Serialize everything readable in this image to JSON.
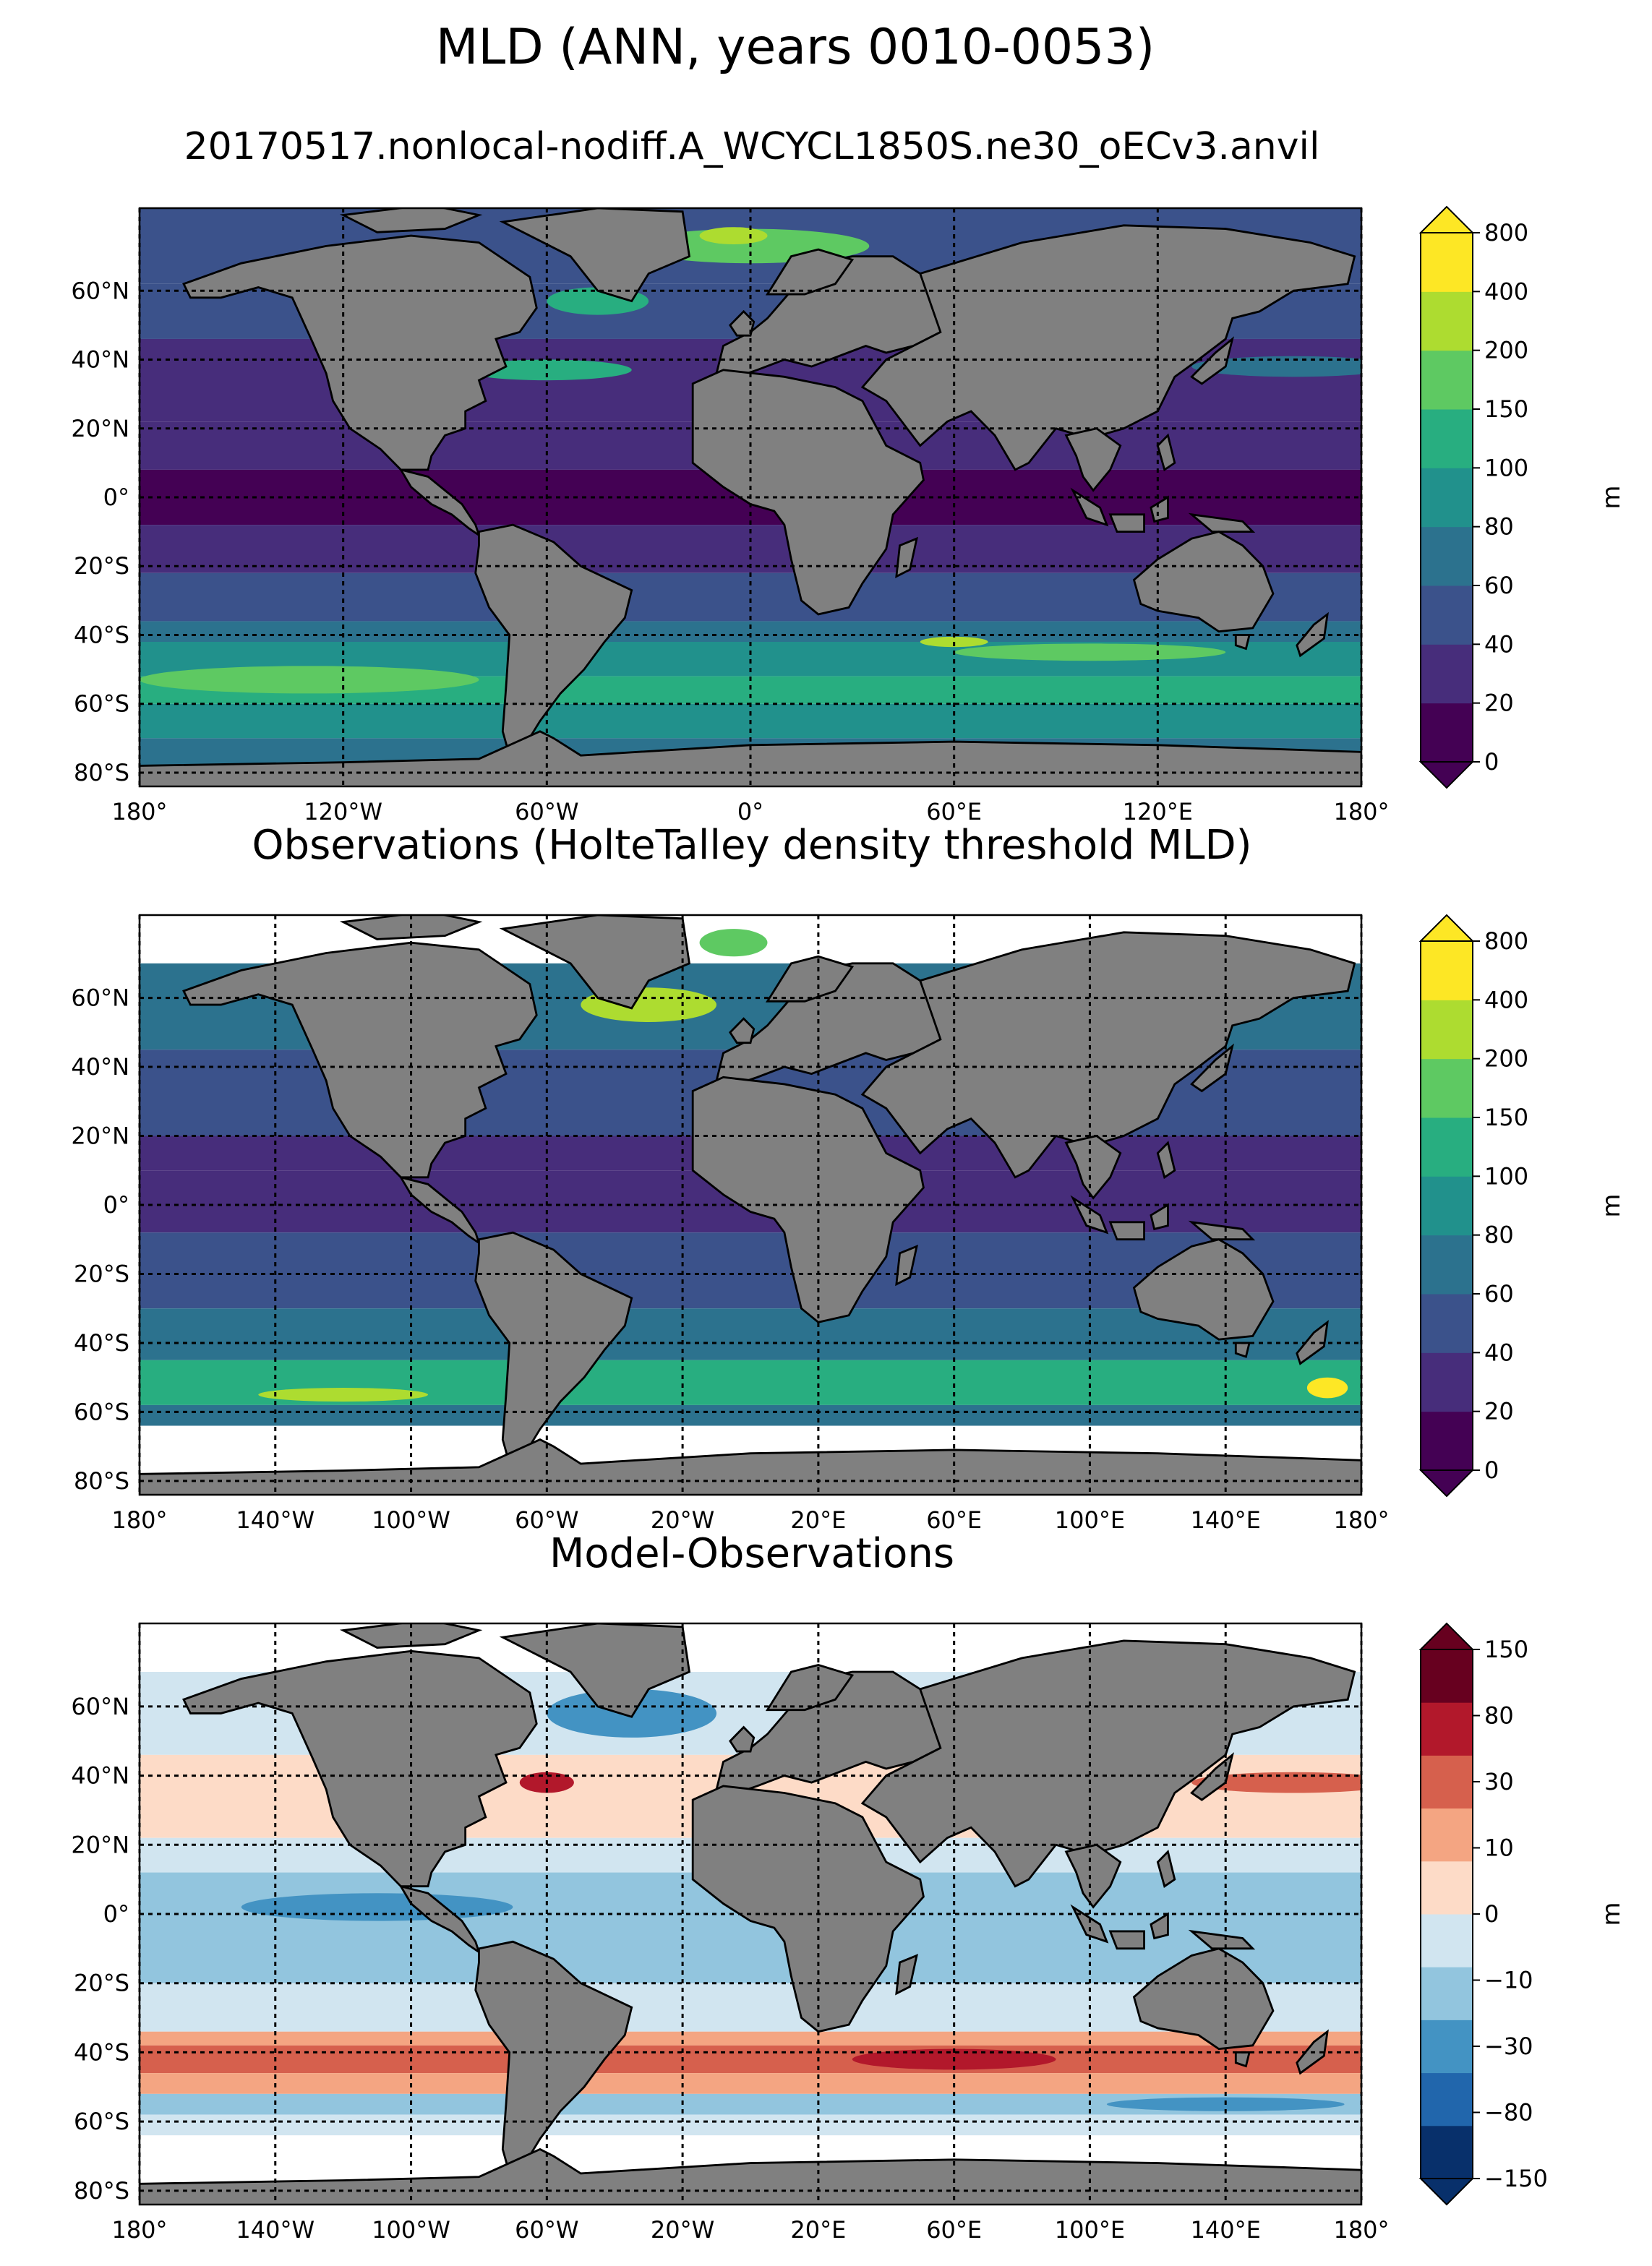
{
  "figure": {
    "title": "MLD (ANN, years 0010-0053)",
    "subtitle": "20170517.nonlocal-nodiff.A_WCYCL1850S.ne30_oECv3.anvil"
  },
  "colors": {
    "land": "#808080",
    "viridis": [
      "#440154",
      "#472d7b",
      "#3b528b",
      "#2c728e",
      "#21918c",
      "#28ae80",
      "#5ec962",
      "#addc30",
      "#fde725"
    ],
    "rdbu": [
      "#08306b",
      "#2166ac",
      "#4393c3",
      "#92c5de",
      "#d1e5f0",
      "#fddbc7",
      "#f4a582",
      "#d6604d",
      "#b2182b",
      "#67001f"
    ]
  },
  "panels": [
    {
      "id": "model",
      "title": "",
      "lat_ticks": [
        "60°N",
        "40°N",
        "20°N",
        "0°",
        "20°S",
        "40°S",
        "60°S",
        "80°S"
      ],
      "lon_ticks": [
        "180°",
        "120°W",
        "60°W",
        "0°",
        "60°E",
        "120°E",
        "180°"
      ],
      "colorbar": {
        "label": "m",
        "ticks": [
          "0",
          "20",
          "40",
          "60",
          "80",
          "100",
          "150",
          "200",
          "400",
          "800"
        ],
        "palette": "viridis",
        "extend": "both"
      }
    },
    {
      "id": "obs",
      "title": "Observations (HolteTalley density threshold MLD)",
      "lat_ticks": [
        "60°N",
        "40°N",
        "20°N",
        "0°",
        "20°S",
        "40°S",
        "60°S",
        "80°S"
      ],
      "lon_ticks": [
        "180°",
        "140°W",
        "100°W",
        "60°W",
        "20°W",
        "20°E",
        "60°E",
        "100°E",
        "140°E",
        "180°"
      ],
      "colorbar": {
        "label": "m",
        "ticks": [
          "0",
          "20",
          "40",
          "60",
          "80",
          "100",
          "150",
          "200",
          "400",
          "800"
        ],
        "palette": "viridis",
        "extend": "both"
      }
    },
    {
      "id": "diff",
      "title": "Model-Observations",
      "lat_ticks": [
        "60°N",
        "40°N",
        "20°N",
        "0°",
        "20°S",
        "40°S",
        "60°S",
        "80°S"
      ],
      "lon_ticks": [
        "180°",
        "140°W",
        "100°W",
        "60°W",
        "20°W",
        "20°E",
        "60°E",
        "100°E",
        "140°E",
        "180°"
      ],
      "colorbar": {
        "label": "m",
        "ticks": [
          "−150",
          "−80",
          "−30",
          "−10",
          "0",
          "10",
          "30",
          "80",
          "150"
        ],
        "palette": "rdbu",
        "extend": "both"
      }
    }
  ]
}
